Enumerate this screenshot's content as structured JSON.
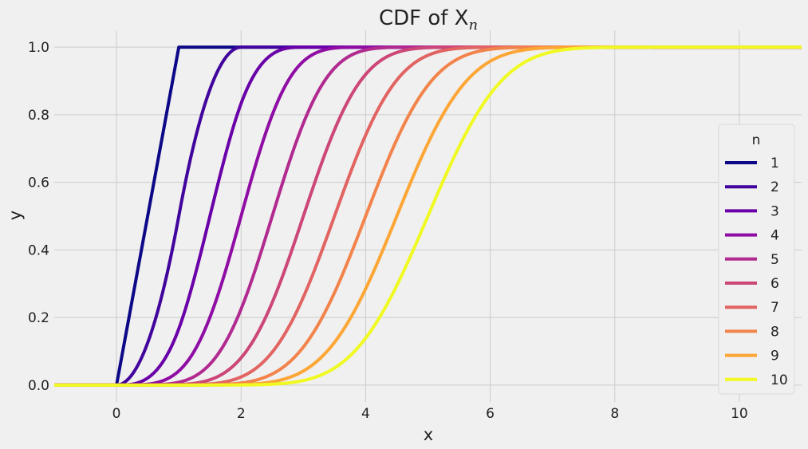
{
  "chart_data": {
    "type": "line",
    "title": "CDF of X",
    "title_subscript": "n",
    "xlabel": "x",
    "ylabel": "y",
    "xlim": [
      -1,
      11
    ],
    "ylim": [
      -0.05,
      1.05
    ],
    "xticks": [
      0,
      2,
      4,
      6,
      8,
      10
    ],
    "yticks": [
      0.0,
      0.2,
      0.4,
      0.6,
      0.8,
      1.0
    ],
    "xtick_labels": [
      "0",
      "2",
      "4",
      "6",
      "8",
      "10"
    ],
    "ytick_labels": [
      "0.0",
      "0.2",
      "0.4",
      "0.6",
      "0.8",
      "1.0"
    ],
    "grid": true,
    "legend": {
      "title": "n",
      "placement": "lower-right"
    },
    "series": [
      {
        "name": "1",
        "n": 1,
        "color": "#0d0887"
      },
      {
        "name": "2",
        "n": 2,
        "color": "#41049d"
      },
      {
        "name": "3",
        "n": 3,
        "color": "#6a00a8"
      },
      {
        "name": "4",
        "n": 4,
        "color": "#8f0da4"
      },
      {
        "name": "5",
        "n": 5,
        "color": "#b12a90"
      },
      {
        "name": "6",
        "n": 6,
        "color": "#cc4778"
      },
      {
        "name": "7",
        "n": 7,
        "color": "#e16462"
      },
      {
        "name": "8",
        "n": 8,
        "color": "#f2844b"
      },
      {
        "name": "9",
        "n": 9,
        "color": "#fca636"
      },
      {
        "name": "10",
        "n": 10,
        "color": "#f0f921"
      }
    ]
  },
  "colors": {
    "background": "#f0f0f0",
    "grid": "#cbcbcb",
    "text": "#222222"
  }
}
